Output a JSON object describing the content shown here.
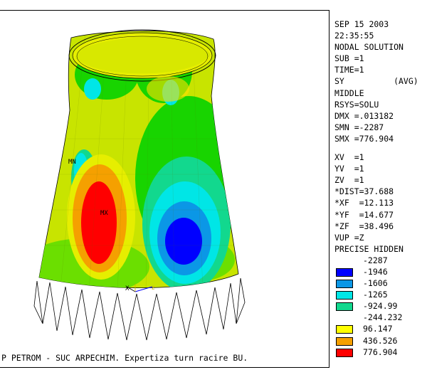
{
  "header": {
    "date": "SEP 15 2003",
    "time": "22:35:55",
    "title": "NODAL SOLUTION"
  },
  "solution": {
    "sub": "SUB =1",
    "time_step": "TIME=1",
    "item": "SY          (AVG)",
    "layer": "MIDDLE",
    "rsys": "RSYS=SOLU",
    "dmx": "DMX =.013182",
    "smn": "SMN =-2287",
    "smx": "SMX =776.904"
  },
  "view": {
    "xv": "XV  =1",
    "yv": "YV  =1",
    "zv": "ZV  =1",
    "dist": "*DIST=37.688",
    "xf": "*XF  =12.113",
    "yf": "*YF  =14.677",
    "zf": "*ZF  =38.496",
    "vup": "VUP =Z",
    "mode": "PRECISE HIDDEN"
  },
  "legend": {
    "min_value": "-2287",
    "rows": [
      {
        "value": "-1946",
        "color": "#0000ff"
      },
      {
        "value": "-1606",
        "color": "#0b97e6"
      },
      {
        "value": "-1265",
        "color": "#00e6e6"
      },
      {
        "value": "-924.99",
        "color": "#12d88e"
      },
      {
        "value": "-244.232",
        "color": ""
      },
      {
        "value": "96.147",
        "color": "#ffff00"
      },
      {
        "value": "436.526",
        "color": "#f5a000"
      },
      {
        "value": "776.904",
        "color": "#ff0000"
      }
    ]
  },
  "markers": {
    "min": "MN",
    "max": "MX",
    "axis_x": "X",
    "axis_z": "Z"
  },
  "caption": "P PETROM - SUC ARPECHIM. Expertiza turn racire BU."
}
